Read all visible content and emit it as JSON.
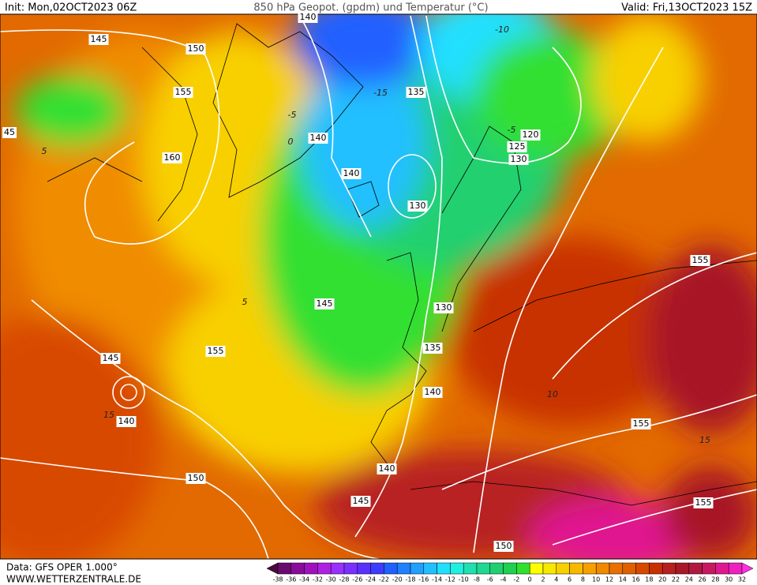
{
  "header": {
    "init": "Init: Mon,02OCT2023 06Z",
    "title": "850 hPa Geopot. (gpdm) und Temperatur (°C)",
    "valid": "Valid: Fri,13OCT2023 15Z"
  },
  "footer": {
    "data": "Data: GFS OPER 1.000°",
    "site": "WWW.WETTERZENTRALE.DE"
  },
  "colorbar": {
    "ticks": [
      -38,
      -36,
      -34,
      -32,
      -30,
      -28,
      -26,
      -24,
      -22,
      -20,
      -18,
      -16,
      -14,
      -12,
      -10,
      -8,
      -6,
      -4,
      -2,
      0,
      2,
      4,
      6,
      8,
      10,
      12,
      14,
      16,
      18,
      20,
      22,
      24,
      26,
      28,
      30,
      32
    ],
    "colors": [
      "#4b0a3c",
      "#6a0a6e",
      "#8a0a9a",
      "#a010c0",
      "#b020e0",
      "#9a30ff",
      "#7a30ff",
      "#5a30ff",
      "#3c3cff",
      "#2060ff",
      "#2080ff",
      "#20a0ff",
      "#20c0ff",
      "#20e0ff",
      "#20f0e0",
      "#20e0b0",
      "#20d890",
      "#20d070",
      "#20d050",
      "#30e030",
      "#ffff00",
      "#f8e800",
      "#f8d000",
      "#f8b800",
      "#f8a000",
      "#f08800",
      "#e87000",
      "#e06000",
      "#d84800",
      "#c83000",
      "#b82020",
      "#a81828",
      "#b01840",
      "#c81860",
      "#e01890",
      "#f020c0",
      "#ff30e0"
    ]
  },
  "contours": {
    "geopotential_labels": [
      "145",
      "150",
      "155",
      "160",
      "45",
      "140",
      "135",
      "140",
      "140",
      "130",
      "120",
      "125",
      "130",
      "145",
      "155",
      "145",
      "140",
      "130",
      "135",
      "140",
      "155",
      "155",
      "150",
      "140",
      "145",
      "155",
      "150"
    ],
    "temperature_labels": [
      "-15",
      "-10",
      "-5",
      "0",
      "5",
      "5",
      "-5",
      "15",
      "15",
      "10"
    ]
  }
}
